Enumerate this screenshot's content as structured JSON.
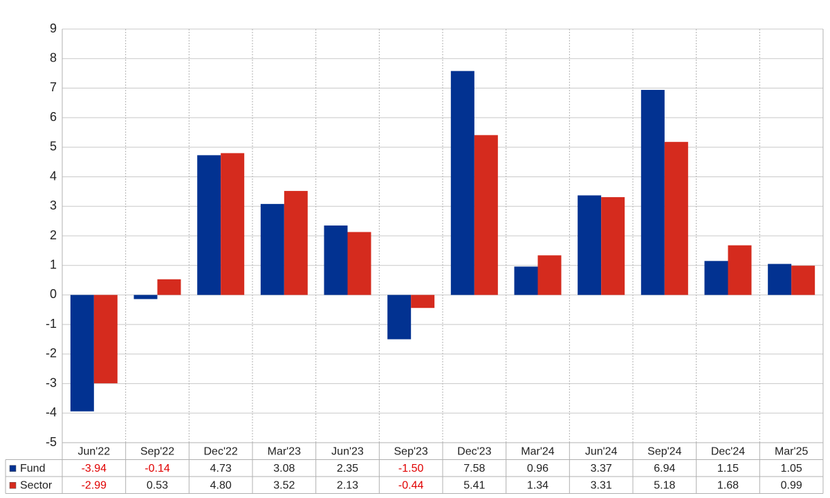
{
  "chart_data": {
    "type": "bar",
    "categories": [
      "Jun'22",
      "Sep'22",
      "Dec'22",
      "Mar'23",
      "Jun'23",
      "Sep'23",
      "Dec'23",
      "Mar'24",
      "Jun'24",
      "Sep'24",
      "Dec'24",
      "Mar'25"
    ],
    "series": [
      {
        "name": "Fund",
        "color": "#023291",
        "values": [
          -3.94,
          -0.14,
          4.73,
          3.08,
          2.35,
          -1.5,
          7.58,
          0.96,
          3.37,
          6.94,
          1.15,
          1.05
        ],
        "value_labels": [
          "-3.94",
          "-0.14",
          "4.73",
          "3.08",
          "2.35",
          "-1.50",
          "7.58",
          "0.96",
          "3.37",
          "6.94",
          "1.15",
          "1.05"
        ]
      },
      {
        "name": "Sector",
        "color": "#d52b1e",
        "values": [
          -2.99,
          0.53,
          4.8,
          3.52,
          2.13,
          -0.44,
          5.41,
          1.34,
          3.31,
          5.18,
          1.68,
          0.99
        ],
        "value_labels": [
          "-2.99",
          "0.53",
          "4.80",
          "3.52",
          "2.13",
          "-0.44",
          "5.41",
          "1.34",
          "3.31",
          "5.18",
          "1.68",
          "0.99"
        ]
      }
    ],
    "ylim": [
      -5,
      9
    ],
    "yticks": [
      -5,
      -4,
      -3,
      -2,
      -1,
      0,
      1,
      2,
      3,
      4,
      5,
      6,
      7,
      8,
      9
    ],
    "grid": true
  }
}
